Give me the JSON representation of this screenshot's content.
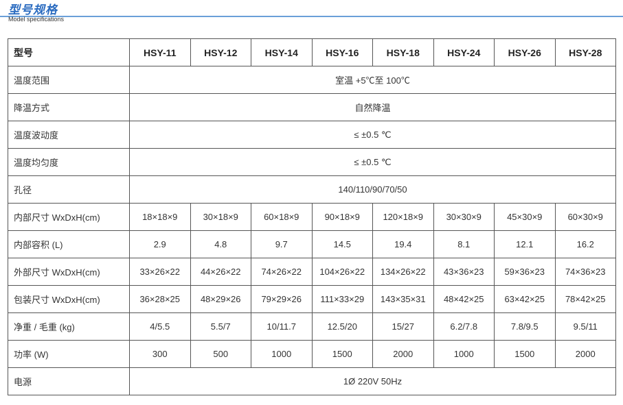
{
  "title": "型号规格",
  "subtitle": "Model specifications",
  "header": {
    "label": "型号",
    "models": [
      "HSY-11",
      "HSY-12",
      "HSY-14",
      "HSY-16",
      "HSY-18",
      "HSY-24",
      "HSY-26",
      "HSY-28"
    ]
  },
  "rows": [
    {
      "label": "温度范围",
      "span": "室温 +5℃至 100℃"
    },
    {
      "label": "降温方式",
      "span": "自然降温"
    },
    {
      "label": "温度波动度",
      "span": "≤ ±0.5 ℃"
    },
    {
      "label": "温度均匀度",
      "span": "≤ ±0.5 ℃"
    },
    {
      "label": "孔径",
      "span": "140/110/90/70/50"
    },
    {
      "label": "内部尺寸 WxDxH(cm)",
      "values": [
        "18×18×9",
        "30×18×9",
        "60×18×9",
        "90×18×9",
        "120×18×9",
        "30×30×9",
        "45×30×9",
        "60×30×9"
      ]
    },
    {
      "label": "内部容积 (L)",
      "values": [
        "2.9",
        "4.8",
        "9.7",
        "14.5",
        "19.4",
        "8.1",
        "12.1",
        "16.2"
      ]
    },
    {
      "label": "外部尺寸 WxDxH(cm)",
      "values": [
        "33×26×22",
        "44×26×22",
        "74×26×22",
        "104×26×22",
        "134×26×22",
        "43×36×23",
        "59×36×23",
        "74×36×23"
      ]
    },
    {
      "label": "包装尺寸 WxDxH(cm)",
      "values": [
        "36×28×25",
        "48×29×26",
        "79×29×26",
        "111×33×29",
        "143×35×31",
        "48×42×25",
        "63×42×25",
        "78×42×25"
      ]
    },
    {
      "label": "净重 / 毛重 (kg)",
      "values": [
        "4/5.5",
        "5.5/7",
        "10/11.7",
        "12.5/20",
        "15/27",
        "6.2/7.8",
        "7.8/9.5",
        "9.5/11"
      ]
    },
    {
      "label": "功率 (W)",
      "values": [
        "300",
        "500",
        "1000",
        "1500",
        "2000",
        "1000",
        "1500",
        "2000"
      ]
    },
    {
      "label": "电源",
      "span": "1Ø 220V 50Hz"
    }
  ]
}
